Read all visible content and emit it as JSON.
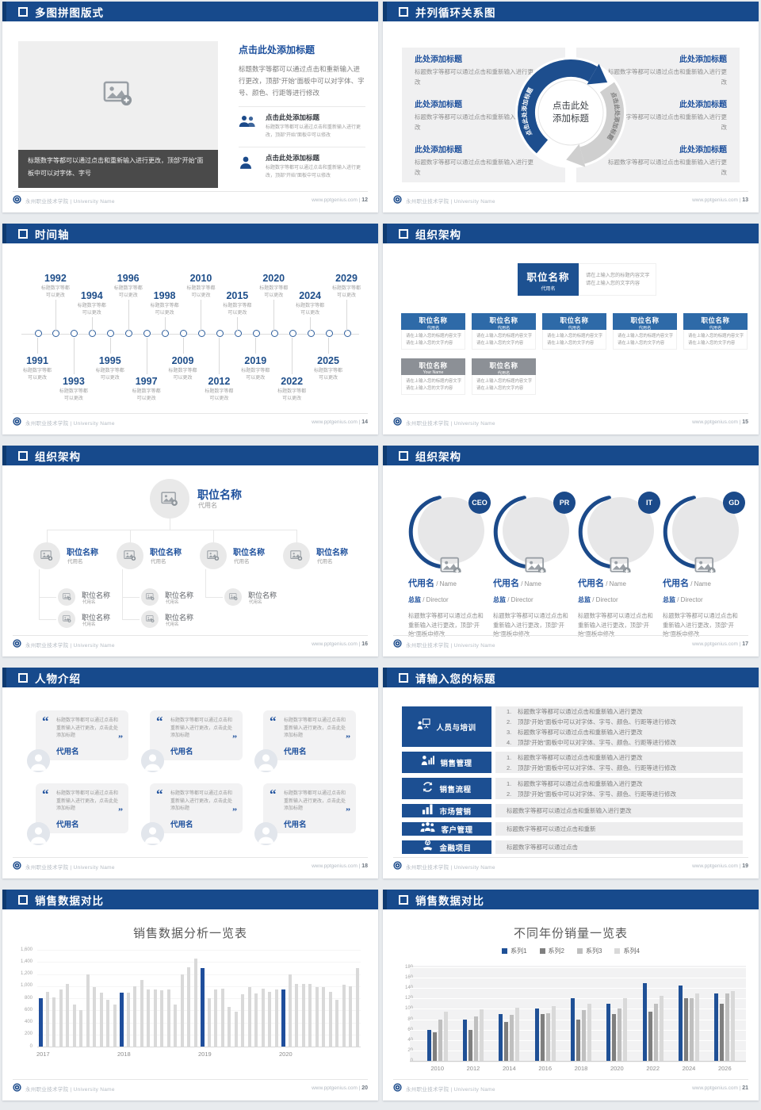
{
  "colors": {
    "header_blue": "#174a8c",
    "header_edge": "#0e3a70",
    "accent_blue": "#1c4f9c",
    "card_blue": "#2e6aa8",
    "card_gray": "#8c9096",
    "dark_caption": "#4a4a4a",
    "panel_gray": "#f0f0f1",
    "chart_highlight": "#1f4e9c",
    "chart_gray": "#d9d9d9"
  },
  "footer": {
    "org": "永州职业技术学院",
    "sep": " | ",
    "org_en": "University Name",
    "site": "www.pptgenius.com",
    "psep": "  |  "
  },
  "slides": {
    "s12": {
      "title": "多图拼图版式",
      "page": "12",
      "caption": "标题数字等都可以通过点击和重新输入进行更改，顶部“开始”面板中可以对字体、字号",
      "right_title": "点击此处添加标题",
      "right_body": "标题数字等都可以通过点击和重新输入进行更改，顶部“开始”面板中可以对字体、字号、颜色、行距等进行修改",
      "items": [
        {
          "icon": "two-people-icon",
          "title": "点击此处添加标题",
          "text": "标题数字等都可以通过点击和重新输入进行更改，顶部“开始”面板中可以修改"
        },
        {
          "icon": "one-person-icon",
          "title": "点击此处添加标题",
          "text": "标题数字等都可以通过点击和重新输入进行更改，顶部“开始”面板中可以修改"
        }
      ]
    },
    "s13": {
      "title": "并列循环关系图",
      "page": "13",
      "center_l1": "点击此处",
      "center_l2": "添加标题",
      "arc_label": "点击此处添加标题",
      "entry_title": "此处添加标题",
      "entry_text": "标题数字等都可以通过点击和重新输入进行更改",
      "left_count": 3,
      "right_count": 3
    },
    "s14": {
      "title": "时间轴",
      "page": "14",
      "note_l1": "标题数字等都",
      "note_l2": "可以更改",
      "years": [
        {
          "y": "1991",
          "s": "b",
          "l": 1
        },
        {
          "y": "1992",
          "s": "a",
          "l": 1
        },
        {
          "y": "1993",
          "s": "b",
          "l": 2
        },
        {
          "y": "1994",
          "s": "a",
          "l": 2
        },
        {
          "y": "1995",
          "s": "b",
          "l": 1
        },
        {
          "y": "1996",
          "s": "a",
          "l": 1
        },
        {
          "y": "1997",
          "s": "b",
          "l": 2
        },
        {
          "y": "1998",
          "s": "a",
          "l": 2
        },
        {
          "y": "2009",
          "s": "b",
          "l": 1
        },
        {
          "y": "2010",
          "s": "a",
          "l": 1
        },
        {
          "y": "2012",
          "s": "b",
          "l": 2
        },
        {
          "y": "2015",
          "s": "a",
          "l": 2
        },
        {
          "y": "2019",
          "s": "b",
          "l": 1
        },
        {
          "y": "2020",
          "s": "a",
          "l": 1
        },
        {
          "y": "2022",
          "s": "b",
          "l": 2
        },
        {
          "y": "2024",
          "s": "a",
          "l": 2
        },
        {
          "y": "2025",
          "s": "b",
          "l": 1
        },
        {
          "y": "2029",
          "s": "a",
          "l": 1
        }
      ]
    },
    "s15": {
      "title": "组织架构",
      "page": "15",
      "root": {
        "name": "职位名称",
        "alias": "代用名"
      },
      "note_l1": "请在上输入您的标题内容文字",
      "note_l2": "请在上输入您的文字内容",
      "body_l1": "请在上输入您的标题内容文字",
      "body_l2": "请在上输入您的文字内容",
      "row1": [
        {
          "name": "职位名称",
          "alias": "代用名"
        },
        {
          "name": "职位名称",
          "alias": "代用名"
        },
        {
          "name": "职位名称",
          "alias": "代用名"
        },
        {
          "name": "职位名称",
          "alias": "代用名"
        },
        {
          "name": "职位名称",
          "alias": "代用名"
        }
      ],
      "row2": [
        {
          "name": "职位名称",
          "alias": "Your Name"
        },
        {
          "name": "职位名称",
          "alias": "代用名"
        }
      ]
    },
    "s16": {
      "title": "组织架构",
      "page": "16",
      "root": {
        "name": "职位名称",
        "alias": "代用名"
      },
      "branches": [
        {
          "name": "职位名称",
          "alias": "代用名",
          "children": [
            {
              "name": "职位名称",
              "alias": "代用名"
            },
            {
              "name": "职位名称",
              "alias": "代用名"
            }
          ]
        },
        {
          "name": "职位名称",
          "alias": "代用名",
          "children": [
            {
              "name": "职位名称",
              "alias": "代用名"
            },
            {
              "name": "职位名称",
              "alias": "代用名"
            }
          ]
        },
        {
          "name": "职位名称",
          "alias": "代用名",
          "children": [
            {
              "name": "职位名称",
              "alias": "代用名"
            }
          ]
        },
        {
          "name": "职位名称",
          "alias": "代用名",
          "children": []
        }
      ]
    },
    "s17": {
      "title": "组织架构",
      "page": "17",
      "cards": [
        {
          "badge": "CEO",
          "name": "代用名",
          "name_en": " / Name",
          "role": "总监",
          "role_en": " /  Director",
          "text": "标题数字等都可以通过点击和重新输入进行更改，顶部“开始”面板中修改"
        },
        {
          "badge": "PR",
          "name": "代用名",
          "name_en": " / Name",
          "role": "总监",
          "role_en": " /  Director",
          "text": "标题数字等都可以通过点击和重新输入进行更改，顶部“开始”面板中修改"
        },
        {
          "badge": "IT",
          "name": "代用名",
          "name_en": " / Name",
          "role": "总监",
          "role_en": " /  Director",
          "text": "标题数字等都可以通过点击和重新输入进行更改，顶部“开始”面板中修改"
        },
        {
          "badge": "GD",
          "name": "代用名",
          "name_en": " / Name",
          "role": "总监",
          "role_en": " /  Director",
          "text": "标题数字等都可以通过点击和重新输入进行更改，顶部“开始”面板中修改"
        }
      ]
    },
    "s18": {
      "title": "人物介绍",
      "page": "18",
      "cards": [
        {
          "text": "标题数字等都可以通过点击和重新输入进行更改，点击此处添加标题",
          "name": "代用名"
        },
        {
          "text": "标题数字等都可以通过点击和重新输入进行更改，点击此处添加标题",
          "name": "代用名"
        },
        {
          "text": "标题数字等都可以通过点击和重新输入进行更改，点击此处添加标题",
          "name": "代用名"
        },
        {
          "text": "标题数字等都可以通过点击和重新输入进行更改，点击此处添加标题",
          "name": "代用名"
        },
        {
          "text": "标题数字等都可以通过点击和重新输入进行更改，点击此处添加标题",
          "name": "代用名"
        },
        {
          "text": "标题数字等都可以通过点击和重新输入进行更改，点击此处添加标题",
          "name": "代用名"
        }
      ]
    },
    "s19": {
      "title": "请输入您的标题",
      "page": "19",
      "rows": [
        {
          "icon": "training-icon",
          "label": "人员与培训",
          "numbered": true,
          "lines": [
            "标题数字等都可以通过点击和重新输入进行更改",
            "顶部“开始”面板中可以对字体、字号、颜色、行距等进行修改",
            "标题数字等都可以通过点击和重新输入进行更改",
            "顶部“开始”面板中可以对字体、字号、颜色、行距等进行修改"
          ]
        },
        {
          "icon": "sales-manage-icon",
          "label": "销售管理",
          "numbered": true,
          "lines": [
            "标题数字等都可以通过点击和重新输入进行更改",
            "顶部“开始”面板中可以对字体、字号、颜色、行距等进行修改"
          ]
        },
        {
          "icon": "process-icon",
          "label": "销售流程",
          "numbered": true,
          "lines": [
            "标题数字等都可以通过点击和重新输入进行更改",
            "顶部“开始”面板中可以对字体、字号、颜色、行距等进行修改"
          ]
        },
        {
          "icon": "bar-chart-icon",
          "label": "市场营销",
          "numbered": false,
          "lines": [
            "标题数字等都可以通过点击和重新输入进行更改"
          ]
        },
        {
          "icon": "customers-icon",
          "label": "客户管理",
          "numbered": false,
          "lines": [
            "标题数字等都可以通过点击和重新"
          ]
        },
        {
          "icon": "finance-icon",
          "label": "金融项目",
          "numbered": false,
          "lines": [
            "标题数字等都可以通过点击"
          ]
        }
      ]
    },
    "s20": {
      "title": "销售数据对比",
      "page": "20"
    },
    "s21": {
      "title": "销售数据对比",
      "page": "21"
    }
  },
  "chart_data": [
    {
      "type": "bar",
      "title": "销售数据分析一览表",
      "xlabel": "",
      "ylabel": "",
      "ylim": [
        0,
        1600
      ],
      "ytick_step": 200,
      "grid": "light",
      "legend": "none",
      "categories": [
        "2017",
        "2018",
        "2019",
        "2020"
      ],
      "highlight_color": "#1f4e9c",
      "bar_color": "#d9d9d9",
      "note": "first bar of each year group is highlighted blue",
      "groups": [
        [
          800,
          900,
          810,
          950,
          1030,
          700,
          600,
          1200,
          990,
          890,
          780,
          700
        ],
        [
          890,
          895,
          1000,
          1100,
          950,
          940,
          930,
          950,
          700,
          1200,
          1310,
          1450
        ],
        [
          1300,
          800,
          950,
          960,
          660,
          580,
          870,
          990,
          880,
          960,
          900,
          950
        ],
        [
          950,
          1200,
          1030,
          1040,
          1030,
          980,
          980,
          900,
          780,
          1020,
          1000,
          1300
        ]
      ]
    },
    {
      "type": "bar",
      "title": "不同年份销量一览表",
      "xlabel": "",
      "ylabel": "",
      "ylim": [
        0,
        180
      ],
      "ytick_step": 20,
      "grid": "white-on-gray",
      "legend": "top",
      "categories": [
        "2010",
        "2012",
        "2014",
        "2016",
        "2018",
        "2020",
        "2022",
        "2024",
        "2026"
      ],
      "series": [
        {
          "name": "系列1",
          "color": "#1f5096",
          "values": [
            60,
            80,
            90,
            100,
            120,
            110,
            150,
            145,
            130
          ]
        },
        {
          "name": "系列2",
          "color": "#7f7f7f",
          "values": [
            55,
            60,
            75,
            90,
            80,
            90,
            95,
            120,
            110
          ]
        },
        {
          "name": "系列3",
          "color": "#bfbfbf",
          "values": [
            80,
            86,
            88,
            92,
            97,
            100,
            110,
            120,
            130
          ]
        },
        {
          "name": "系列4",
          "color": "#d9d9d9",
          "values": [
            95,
            99,
            102,
            105,
            110,
            120,
            125,
            130,
            135
          ]
        }
      ]
    }
  ]
}
